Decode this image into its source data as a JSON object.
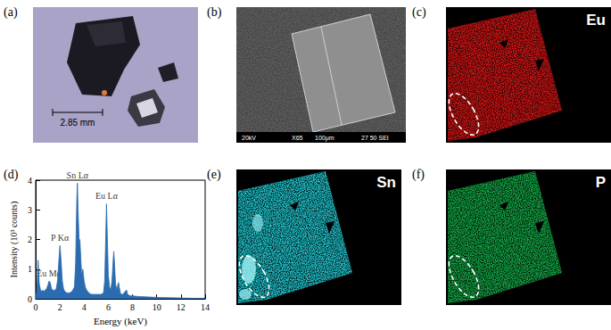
{
  "panels": {
    "a": {
      "label": "(a)",
      "scale_bar": "2.85 mm"
    },
    "b": {
      "label": "(b)",
      "sem_info": [
        "20kV",
        "X65",
        "100μm",
        "27 50 SEI"
      ]
    },
    "c": {
      "label": "(c)",
      "element": "Eu",
      "color": "#d41414"
    },
    "e": {
      "label": "(e)",
      "element": "Sn",
      "color": "#1fc3cc"
    },
    "f": {
      "label": "(f)",
      "element": "P",
      "color": "#12a443"
    }
  },
  "chart_data": {
    "panel_label": "(d)",
    "type": "area",
    "xlabel": "Energy (keV)",
    "ylabel": "Intensity (10³ counts)",
    "color": "#2b6cb0",
    "grid": false,
    "xlim": [
      0,
      14
    ],
    "xticks": [
      0,
      2,
      4,
      6,
      8,
      10,
      12,
      14
    ],
    "ylim": [
      0,
      4
    ],
    "yticks": [
      0,
      1,
      2,
      3,
      4
    ],
    "x": [
      0,
      0.1,
      0.2,
      0.3,
      0.4,
      0.5,
      0.6,
      0.7,
      0.8,
      0.9,
      1.0,
      1.1,
      1.2,
      1.3,
      1.4,
      1.5,
      1.6,
      1.7,
      1.8,
      1.9,
      2.0,
      2.1,
      2.2,
      2.3,
      2.4,
      2.6,
      2.8,
      3.0,
      3.2,
      3.3,
      3.4,
      3.45,
      3.5,
      3.6,
      3.65,
      3.7,
      3.8,
      3.9,
      4.0,
      4.1,
      4.2,
      4.4,
      4.6,
      4.8,
      5.0,
      5.2,
      5.4,
      5.6,
      5.7,
      5.8,
      5.85,
      5.9,
      6.0,
      6.1,
      6.2,
      6.3,
      6.4,
      6.45,
      6.5,
      6.6,
      6.7,
      6.8,
      6.85,
      6.9,
      7.0,
      7.1,
      7.2,
      7.4,
      7.5,
      7.6,
      7.8,
      8.0,
      8.5,
      9.0,
      9.5,
      10.0,
      11.0,
      12.0,
      13.0,
      14.0
    ],
    "values": [
      0,
      0.3,
      1.3,
      0.5,
      0.3,
      0.25,
      0.3,
      0.25,
      0.3,
      0.35,
      0.45,
      0.6,
      0.55,
      0.35,
      0.3,
      0.28,
      0.3,
      0.35,
      0.6,
      1.2,
      1.8,
      1.3,
      0.6,
      0.35,
      0.25,
      0.2,
      0.2,
      0.25,
      0.4,
      1.2,
      3.4,
      3.9,
      3.0,
      1.8,
      2.0,
      1.6,
      0.8,
      1.0,
      0.6,
      0.4,
      0.3,
      0.2,
      0.15,
      0.15,
      0.15,
      0.15,
      0.15,
      0.2,
      0.6,
      2.3,
      3.2,
      2.4,
      0.8,
      0.4,
      0.3,
      0.6,
      1.3,
      1.6,
      1.3,
      0.5,
      0.3,
      0.5,
      0.55,
      0.4,
      0.2,
      0.15,
      0.15,
      0.25,
      0.3,
      0.15,
      0.1,
      0.1,
      0.08,
      0.07,
      0.06,
      0.05,
      0.04,
      0.03,
      0.02,
      0.02
    ],
    "annotations": [
      {
        "text": "Eu Mα",
        "x": 1.1,
        "y": 0.65
      },
      {
        "text": "P Kα",
        "x": 2.0,
        "y": 1.85
      },
      {
        "text": "Sn Lα",
        "x": 3.45,
        "y": 3.95
      },
      {
        "text": "Eu Lα",
        "x": 5.85,
        "y": 3.25
      }
    ]
  }
}
